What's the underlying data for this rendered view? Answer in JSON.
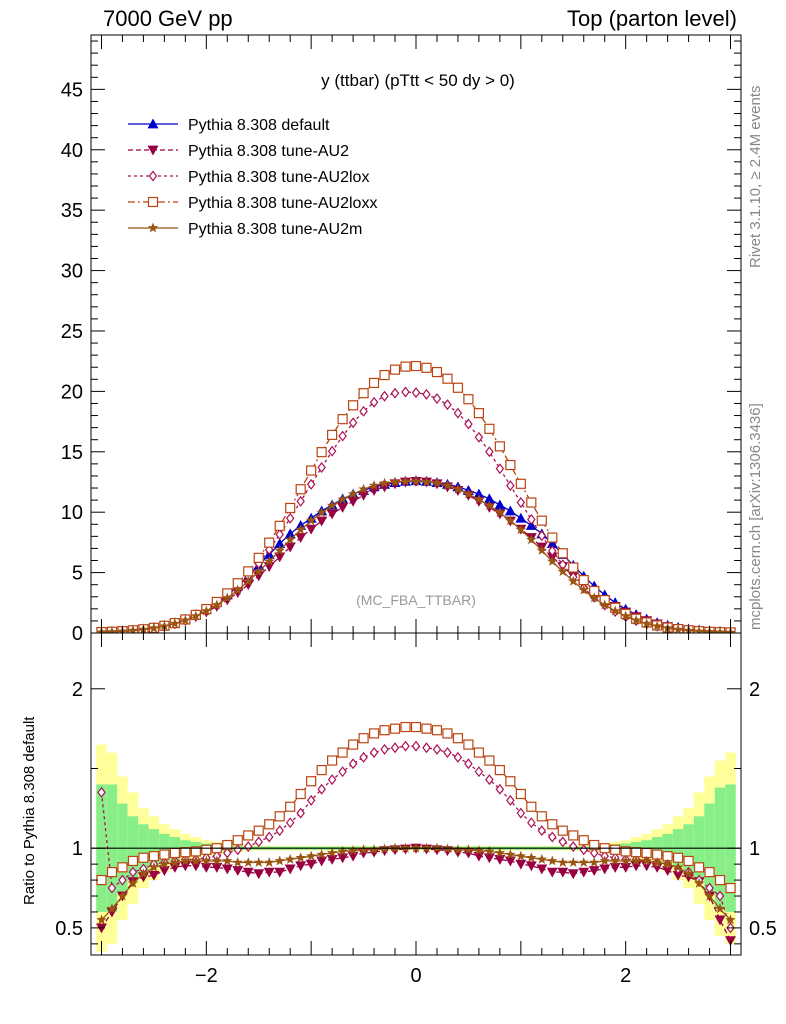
{
  "header": {
    "left": "7000 GeV pp",
    "right": "Top (parton level)"
  },
  "side_labels": {
    "rivet": "Rivet 3.1.10, ≥ 2.4M events",
    "mcplots": "mcplots.cern.ch [arXiv:1306.3436]"
  },
  "colors": {
    "default": "#0000cc",
    "AU2": "#990044",
    "AU2lox": "#aa1155",
    "AU2loxx": "#bb4411",
    "AU2m": "#995511",
    "band_inner": "#88ee88",
    "band_outer": "#ffff99"
  },
  "chart_data": [
    {
      "type": "line",
      "title": "y (ttbar) (pTtt < 50 dy > 0)",
      "watermark": "(MC_FBA_TTBAR)",
      "xlim": [
        -3.1,
        3.1
      ],
      "ylim": [
        0,
        49.5
      ],
      "yticks": [
        "0",
        "5",
        "10",
        "15",
        "20",
        "25",
        "30",
        "35",
        "40",
        "45"
      ],
      "legend_position": "top-left",
      "legend": [
        "Pythia 8.308 default",
        "Pythia 8.308 tune-AU2",
        "Pythia 8.308 tune-AU2lox",
        "Pythia 8.308 tune-AU2loxx",
        "Pythia 8.308 tune-AU2m"
      ],
      "x": [
        -3.0,
        -2.9,
        -2.8,
        -2.7,
        -2.6,
        -2.5,
        -2.4,
        -2.3,
        -2.2,
        -2.1,
        -2.0,
        -1.9,
        -1.8,
        -1.7,
        -1.6,
        -1.5,
        -1.4,
        -1.3,
        -1.2,
        -1.1,
        -1.0,
        -0.9,
        -0.8,
        -0.7,
        -0.6,
        -0.5,
        -0.4,
        -0.3,
        -0.2,
        -0.1,
        0.0,
        0.1,
        0.2,
        0.3,
        0.4,
        0.5,
        0.6,
        0.7,
        0.8,
        0.9,
        1.0,
        1.1,
        1.2,
        1.3,
        1.4,
        1.5,
        1.6,
        1.7,
        1.8,
        1.9,
        2.0,
        2.1,
        2.2,
        2.3,
        2.4,
        2.5,
        2.6,
        2.7,
        2.8,
        2.9,
        3.0
      ],
      "series": [
        {
          "name": "Pythia 8.308 default",
          "values": [
            0.1,
            0.13,
            0.17,
            0.24,
            0.33,
            0.46,
            0.63,
            0.85,
            1.15,
            1.52,
            1.97,
            2.51,
            3.15,
            3.88,
            4.7,
            5.6,
            6.5,
            7.4,
            8.2,
            8.9,
            9.5,
            10.1,
            10.6,
            11.1,
            11.5,
            11.8,
            12.1,
            12.3,
            12.45,
            12.55,
            12.6,
            12.55,
            12.45,
            12.3,
            12.1,
            11.8,
            11.5,
            11.1,
            10.6,
            10.1,
            9.5,
            8.9,
            8.2,
            7.4,
            6.5,
            5.6,
            4.7,
            3.88,
            3.15,
            2.51,
            1.97,
            1.52,
            1.15,
            0.85,
            0.63,
            0.46,
            0.33,
            0.24,
            0.17,
            0.13,
            0.1
          ]
        },
        {
          "name": "Pythia 8.308 tune-AU2",
          "values": [
            0.05,
            0.08,
            0.12,
            0.19,
            0.27,
            0.38,
            0.54,
            0.75,
            1.02,
            1.35,
            1.74,
            2.2,
            2.74,
            3.35,
            4.0,
            4.73,
            5.5,
            6.3,
            7.12,
            7.9,
            8.6,
            9.27,
            9.86,
            10.4,
            10.9,
            11.4,
            11.8,
            12.1,
            12.35,
            12.5,
            12.55,
            12.5,
            12.35,
            12.1,
            11.8,
            11.4,
            10.9,
            10.4,
            9.86,
            9.27,
            8.6,
            7.9,
            7.12,
            6.3,
            5.5,
            4.73,
            4.0,
            3.35,
            2.74,
            2.2,
            1.74,
            1.35,
            1.02,
            0.75,
            0.54,
            0.38,
            0.27,
            0.19,
            0.12,
            0.08,
            0.05
          ]
        },
        {
          "name": "Pythia 8.308 tune-AU2lox",
          "values": [
            0.07,
            0.1,
            0.14,
            0.21,
            0.3,
            0.41,
            0.57,
            0.78,
            1.06,
            1.41,
            1.85,
            2.4,
            3.05,
            3.82,
            4.72,
            5.75,
            6.9,
            8.15,
            9.5,
            10.9,
            12.3,
            13.7,
            15.05,
            16.3,
            17.4,
            18.35,
            19.1,
            19.6,
            19.85,
            19.95,
            19.9,
            19.75,
            19.4,
            18.9,
            18.2,
            17.3,
            16.2,
            15.0,
            13.6,
            12.2,
            10.8,
            9.4,
            8.05,
            6.8,
            5.65,
            4.62,
            3.72,
            2.95,
            2.31,
            1.78,
            1.35,
            1.02,
            0.76,
            0.56,
            0.41,
            0.3,
            0.21,
            0.14,
            0.1,
            0.07,
            0.05
          ]
        },
        {
          "name": "Pythia 8.308 tune-AU2loxx",
          "values": [
            0.08,
            0.11,
            0.15,
            0.22,
            0.31,
            0.43,
            0.6,
            0.82,
            1.12,
            1.5,
            1.98,
            2.57,
            3.28,
            4.12,
            5.1,
            6.22,
            7.48,
            8.87,
            10.35,
            11.9,
            13.45,
            14.97,
            16.4,
            17.7,
            18.85,
            19.85,
            20.7,
            21.35,
            21.8,
            22.05,
            22.1,
            21.95,
            21.6,
            21.05,
            20.3,
            19.35,
            18.2,
            16.9,
            15.45,
            13.9,
            12.35,
            10.8,
            9.3,
            7.9,
            6.6,
            5.42,
            4.38,
            3.48,
            2.72,
            2.09,
            1.58,
            1.18,
            0.87,
            0.63,
            0.45,
            0.32,
            0.22,
            0.15,
            0.1,
            0.07,
            0.05
          ]
        },
        {
          "name": "Pythia 8.308 tune-AU2m",
          "values": [
            0.06,
            0.09,
            0.13,
            0.19,
            0.28,
            0.4,
            0.56,
            0.77,
            1.05,
            1.4,
            1.82,
            2.32,
            2.9,
            3.55,
            4.28,
            5.08,
            5.93,
            6.83,
            7.72,
            8.55,
            9.3,
            9.97,
            10.55,
            11.05,
            11.5,
            11.9,
            12.2,
            12.4,
            12.5,
            12.55,
            12.55,
            12.5,
            12.4,
            12.2,
            11.9,
            11.5,
            11.05,
            10.55,
            9.97,
            9.3,
            8.55,
            7.72,
            6.83,
            5.93,
            5.08,
            4.28,
            3.55,
            2.9,
            2.32,
            1.82,
            1.4,
            1.05,
            0.77,
            0.56,
            0.4,
            0.28,
            0.19,
            0.13,
            0.09,
            0.06,
            0.04
          ]
        }
      ]
    },
    {
      "type": "line",
      "ylabel": "Ratio to Pythia 8.308 default",
      "xlim": [
        -3.1,
        3.1
      ],
      "ylim": [
        0.33,
        2.35
      ],
      "xticks": [
        "−2",
        "0",
        "2"
      ],
      "yticks": [
        "0.5",
        "1",
        "2"
      ],
      "reference_line": 1,
      "x": [
        -3.0,
        -2.9,
        -2.8,
        -2.7,
        -2.6,
        -2.5,
        -2.4,
        -2.3,
        -2.2,
        -2.1,
        -2.0,
        -1.9,
        -1.8,
        -1.7,
        -1.6,
        -1.5,
        -1.4,
        -1.3,
        -1.2,
        -1.1,
        -1.0,
        -0.9,
        -0.8,
        -0.7,
        -0.6,
        -0.5,
        -0.4,
        -0.3,
        -0.2,
        -0.1,
        0.0,
        0.1,
        0.2,
        0.3,
        0.4,
        0.5,
        0.6,
        0.7,
        0.8,
        0.9,
        1.0,
        1.1,
        1.2,
        1.3,
        1.4,
        1.5,
        1.6,
        1.7,
        1.8,
        1.9,
        2.0,
        2.1,
        2.2,
        2.3,
        2.4,
        2.5,
        2.6,
        2.7,
        2.8,
        2.9,
        3.0
      ],
      "band": {
        "inner": [
          0.6,
          0.6,
          0.72,
          0.8,
          0.85,
          0.88,
          0.91,
          0.93,
          0.95,
          0.96,
          0.97,
          0.975,
          0.98,
          0.985,
          0.99,
          0.99,
          0.99,
          0.99,
          0.99,
          0.99,
          0.99,
          0.99,
          0.99,
          0.99,
          0.99,
          0.99,
          0.99,
          0.99,
          0.99,
          0.99,
          0.99,
          0.99,
          0.99,
          0.99,
          0.99,
          0.99,
          0.99,
          0.99,
          0.99,
          0.99,
          0.99,
          0.99,
          0.99,
          0.99,
          0.99,
          0.99,
          0.99,
          0.985,
          0.98,
          0.975,
          0.97,
          0.96,
          0.95,
          0.93,
          0.91,
          0.88,
          0.85,
          0.8,
          0.72,
          0.62,
          0.6
        ],
        "outer": [
          0.35,
          0.4,
          0.55,
          0.65,
          0.75,
          0.8,
          0.85,
          0.88,
          0.91,
          0.93,
          0.95,
          0.96,
          0.97,
          0.975,
          0.98,
          0.985,
          0.985,
          0.985,
          0.985,
          0.985,
          0.985,
          0.985,
          0.985,
          0.985,
          0.985,
          0.985,
          0.985,
          0.985,
          0.985,
          0.985,
          0.985,
          0.985,
          0.985,
          0.985,
          0.985,
          0.985,
          0.985,
          0.985,
          0.985,
          0.985,
          0.985,
          0.985,
          0.985,
          0.985,
          0.985,
          0.985,
          0.98,
          0.975,
          0.97,
          0.96,
          0.95,
          0.93,
          0.91,
          0.88,
          0.85,
          0.8,
          0.75,
          0.65,
          0.55,
          0.45,
          0.4
        ]
      },
      "series": [
        {
          "name": "Pythia 8.308 tune-AU2",
          "values": [
            0.5,
            0.6,
            0.7,
            0.79,
            0.82,
            0.83,
            0.86,
            0.88,
            0.89,
            0.89,
            0.88,
            0.88,
            0.87,
            0.86,
            0.85,
            0.84,
            0.85,
            0.85,
            0.87,
            0.89,
            0.9,
            0.92,
            0.93,
            0.94,
            0.95,
            0.97,
            0.975,
            0.985,
            0.99,
            0.995,
            1.0,
            0.995,
            0.99,
            0.985,
            0.975,
            0.97,
            0.95,
            0.94,
            0.93,
            0.92,
            0.9,
            0.89,
            0.87,
            0.85,
            0.85,
            0.84,
            0.85,
            0.86,
            0.87,
            0.88,
            0.88,
            0.89,
            0.89,
            0.88,
            0.86,
            0.83,
            0.82,
            0.79,
            0.7,
            0.55,
            0.42
          ]
        },
        {
          "name": "Pythia 8.308 tune-AU2lox",
          "values": [
            1.35,
            0.75,
            0.8,
            0.85,
            0.87,
            0.9,
            0.91,
            0.92,
            0.93,
            0.93,
            0.94,
            0.95,
            0.97,
            0.99,
            1.01,
            1.04,
            1.07,
            1.11,
            1.16,
            1.22,
            1.3,
            1.37,
            1.43,
            1.48,
            1.53,
            1.57,
            1.6,
            1.62,
            1.63,
            1.64,
            1.64,
            1.63,
            1.62,
            1.6,
            1.57,
            1.53,
            1.48,
            1.43,
            1.37,
            1.3,
            1.22,
            1.16,
            1.11,
            1.07,
            1.04,
            1.01,
            0.99,
            0.97,
            0.95,
            0.94,
            0.93,
            0.93,
            0.92,
            0.91,
            0.9,
            0.87,
            0.85,
            0.8,
            0.75,
            0.7,
            0.5
          ]
        },
        {
          "name": "Pythia 8.308 tune-AU2loxx",
          "values": [
            0.8,
            0.85,
            0.88,
            0.92,
            0.94,
            0.95,
            0.96,
            0.97,
            0.975,
            0.98,
            0.99,
            1.0,
            1.02,
            1.05,
            1.08,
            1.11,
            1.15,
            1.2,
            1.26,
            1.34,
            1.42,
            1.49,
            1.55,
            1.6,
            1.65,
            1.69,
            1.72,
            1.74,
            1.75,
            1.76,
            1.76,
            1.75,
            1.74,
            1.72,
            1.69,
            1.65,
            1.6,
            1.55,
            1.49,
            1.42,
            1.34,
            1.26,
            1.2,
            1.15,
            1.11,
            1.08,
            1.05,
            1.02,
            1.0,
            0.99,
            0.98,
            0.975,
            0.97,
            0.96,
            0.95,
            0.94,
            0.92,
            0.88,
            0.85,
            0.8,
            0.75
          ]
        },
        {
          "name": "Pythia 8.308 tune-AU2m",
          "values": [
            0.55,
            0.62,
            0.7,
            0.78,
            0.84,
            0.88,
            0.9,
            0.91,
            0.92,
            0.92,
            0.92,
            0.92,
            0.92,
            0.91,
            0.91,
            0.91,
            0.91,
            0.92,
            0.93,
            0.94,
            0.95,
            0.96,
            0.97,
            0.98,
            0.985,
            0.99,
            0.99,
            0.995,
            1.0,
            1.0,
            1.0,
            1.0,
            1.0,
            0.995,
            0.99,
            0.99,
            0.985,
            0.98,
            0.97,
            0.96,
            0.95,
            0.94,
            0.93,
            0.92,
            0.91,
            0.91,
            0.91,
            0.91,
            0.92,
            0.92,
            0.92,
            0.92,
            0.92,
            0.91,
            0.9,
            0.88,
            0.84,
            0.78,
            0.7,
            0.62,
            0.55
          ]
        }
      ]
    }
  ]
}
